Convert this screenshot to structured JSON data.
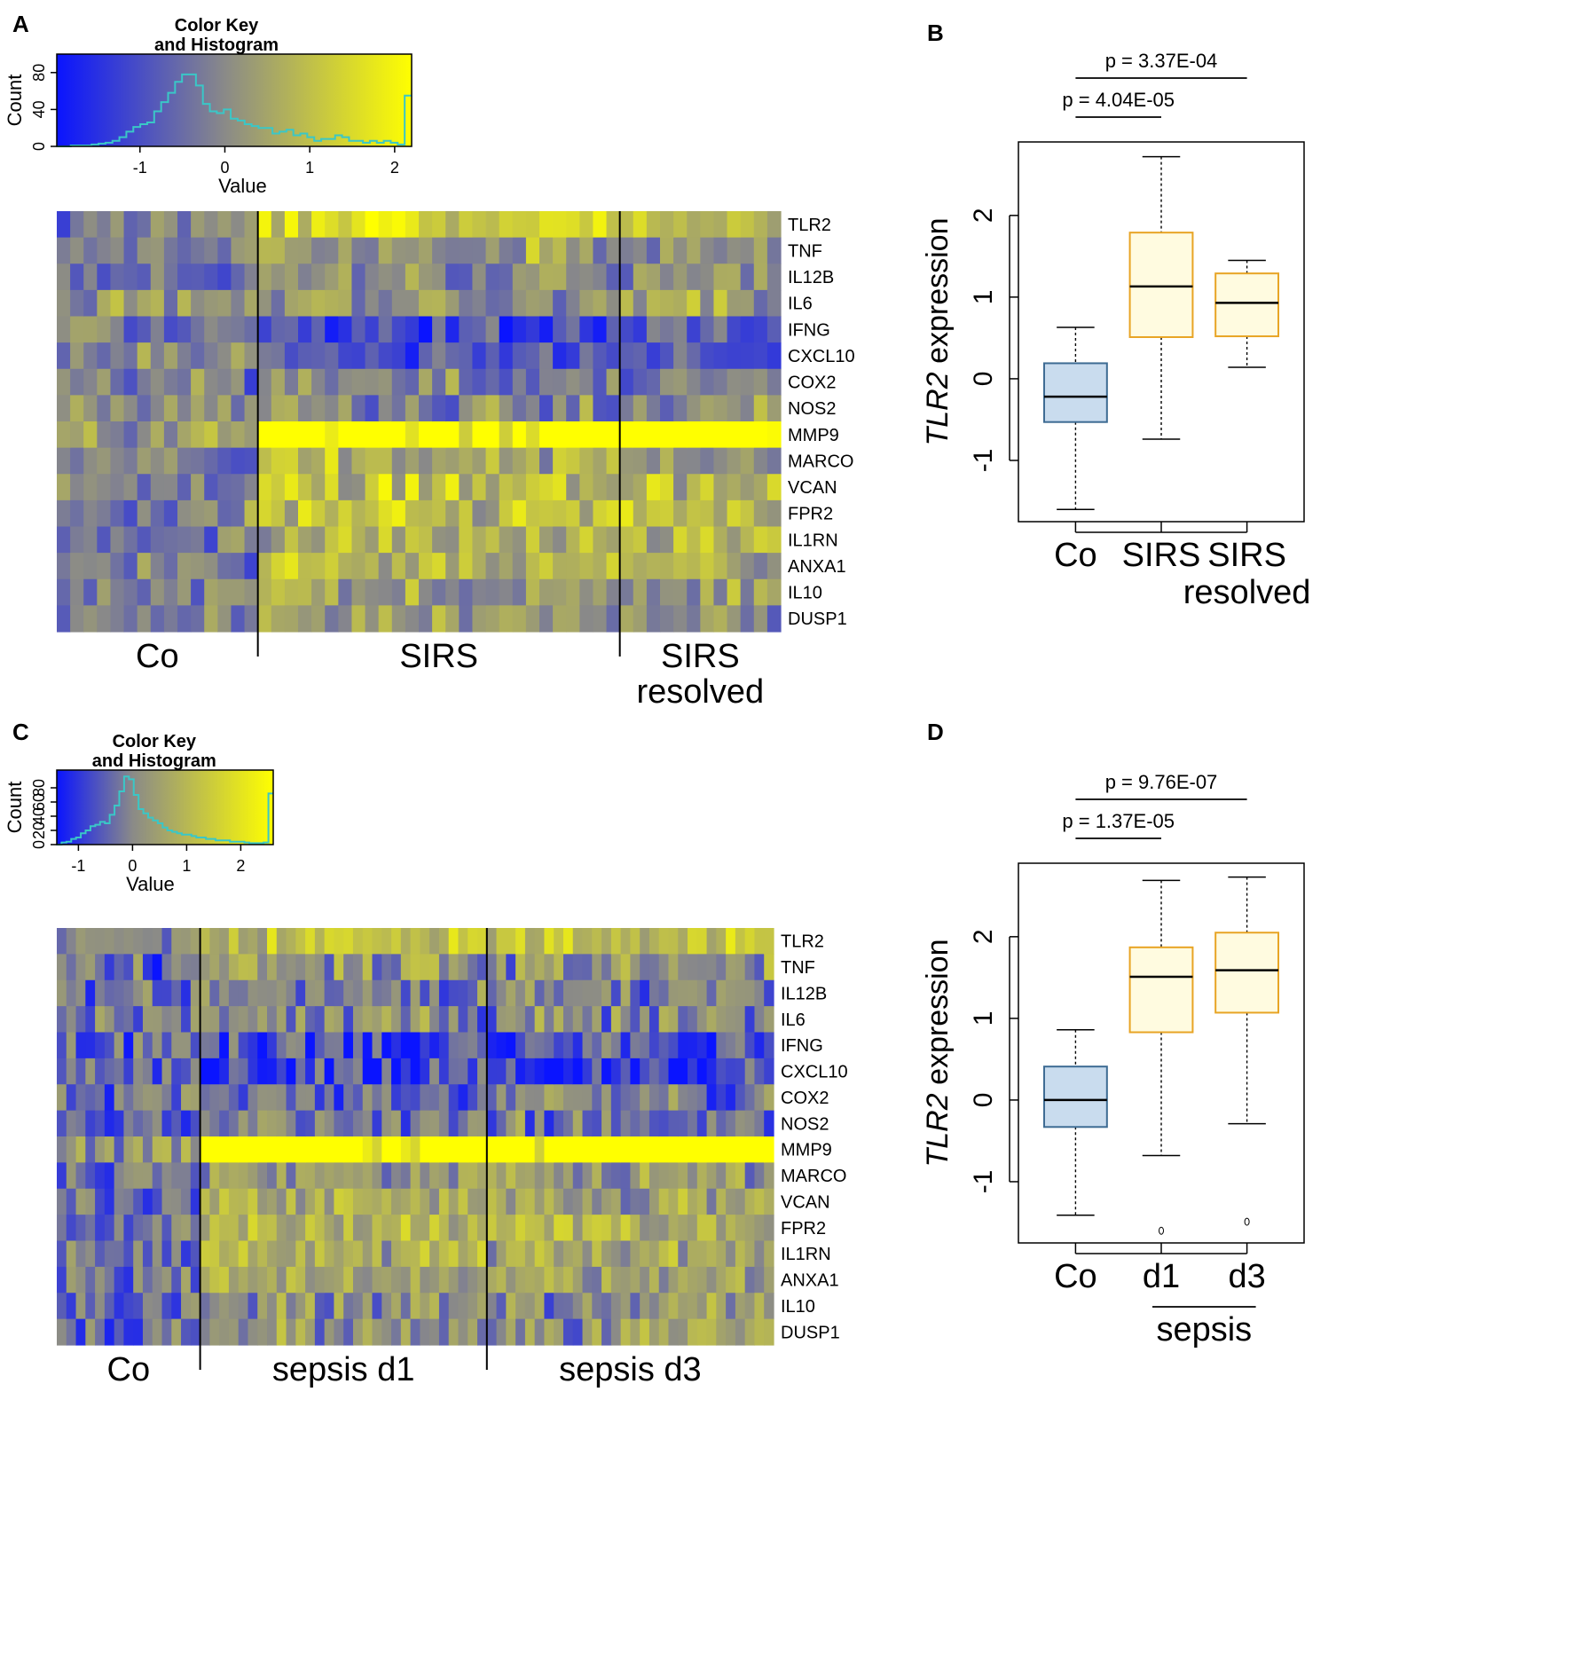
{
  "panels": {
    "A": {
      "label": "A",
      "color_key": {
        "title_line1": "Color Key",
        "title_line2": "and Histogram",
        "xlabel": "Value",
        "ylabel": "Count",
        "xticks": [
          "-1",
          "0",
          "1",
          "2"
        ],
        "yticks": [
          "0",
          "40",
          "80"
        ],
        "xlim": [
          -1.98,
          2.2
        ],
        "ylim": [
          0,
          100
        ]
      },
      "genes": [
        "TLR2",
        "TNF",
        "IL12B",
        "IL6",
        "IFNG",
        "CXCL10",
        "COX2",
        "NOS2",
        "MMP9",
        "MARCO",
        "VCAN",
        "FPR2",
        "IL1RN",
        "ANXA1",
        "IL10",
        "DUSP1"
      ],
      "groups": [
        {
          "label_line1": "Co",
          "label_line2": "",
          "n_cols": 15
        },
        {
          "label_line1": "SIRS",
          "label_line2": "",
          "n_cols": 27
        },
        {
          "label_line1": "SIRS",
          "label_line2": "resolved",
          "n_cols": 12
        }
      ]
    },
    "B": {
      "label": "B",
      "ylabel_italic": "TLR2",
      "ylabel_rest": " expression",
      "yticks": [
        "-1",
        "0",
        "1",
        "2"
      ],
      "ylim": [
        -1.75,
        2.9
      ],
      "xcats": [
        {
          "line1": "Co",
          "line2": ""
        },
        {
          "line1": "SIRS",
          "line2": ""
        },
        {
          "line1": "SIRS",
          "line2": "resolved"
        }
      ],
      "pvalues": [
        "p = 3.37E-04",
        "p = 4.04E-05"
      ],
      "boxes": [
        {
          "whisker_low": -1.6,
          "q1": -0.53,
          "median": -0.22,
          "q3": 0.19,
          "whisker_high": 0.63,
          "fill": "#c9dcee",
          "stroke": "#3d6b93"
        },
        {
          "whisker_low": -0.74,
          "q1": 0.51,
          "median": 1.13,
          "q3": 1.79,
          "whisker_high": 2.72,
          "fill": "#fffbe0",
          "stroke": "#e8a424"
        },
        {
          "whisker_low": 0.14,
          "q1": 0.52,
          "median": 0.93,
          "q3": 1.29,
          "whisker_high": 1.45,
          "fill": "#fffbe0",
          "stroke": "#e8a424"
        }
      ],
      "outliers": []
    },
    "C": {
      "label": "C",
      "color_key": {
        "title_line1": "Color Key",
        "title_line2": "and Histogram",
        "xlabel": "Value",
        "ylabel": "Count",
        "xticks": [
          "-1",
          "0",
          "1",
          "2"
        ],
        "yticks": [
          "0",
          "20",
          "40",
          "60",
          "80"
        ],
        "xlim": [
          -1.4,
          2.6
        ],
        "ylim": [
          0,
          105
        ]
      },
      "genes": [
        "TLR2",
        "TNF",
        "IL12B",
        "IL6",
        "IFNG",
        "CXCL10",
        "COX2",
        "NOS2",
        "MMP9",
        "MARCO",
        "VCAN",
        "FPR2",
        "IL1RN",
        "ANXA1",
        "IL10",
        "DUSP1"
      ],
      "groups": [
        {
          "label_line1": "Co",
          "label_line2": "",
          "n_cols": 15
        },
        {
          "label_line1": "sepsis d1",
          "label_line2": "",
          "n_cols": 30
        },
        {
          "label_line1": "sepsis d3",
          "label_line2": "",
          "n_cols": 30
        }
      ]
    },
    "D": {
      "label": "D",
      "ylabel_italic": "TLR2",
      "ylabel_rest": " expression",
      "yticks": [
        "-1",
        "0",
        "1",
        "2"
      ],
      "ylim": [
        -1.75,
        2.9
      ],
      "xcats": [
        {
          "line1": "Co",
          "line2": ""
        },
        {
          "line1": "d1",
          "line2": ""
        },
        {
          "line1": "d3",
          "line2": ""
        }
      ],
      "group_label": "sepsis",
      "pvalues": [
        "p = 9.76E-07",
        "p = 1.37E-05"
      ],
      "boxes": [
        {
          "whisker_low": -1.41,
          "q1": -0.33,
          "median": 0.0,
          "q3": 0.41,
          "whisker_high": 0.86,
          "fill": "#c9dcee",
          "stroke": "#3d6b93"
        },
        {
          "whisker_low": -0.68,
          "q1": 0.83,
          "median": 1.51,
          "q3": 1.87,
          "whisker_high": 2.69,
          "fill": "#fffbe0",
          "stroke": "#e8a424"
        },
        {
          "whisker_low": -0.29,
          "q1": 1.07,
          "median": 1.59,
          "q3": 2.05,
          "whisker_high": 2.73,
          "fill": "#fffbe0",
          "stroke": "#e8a424"
        }
      ],
      "outliers": [
        {
          "box": 1,
          "value": -1.6
        },
        {
          "box": 2,
          "value": -1.49
        }
      ]
    }
  },
  "colors": {
    "low": "#0a14ff",
    "mid": "#8a8a88",
    "high": "#ffff00",
    "histogram": "#3ac7c7"
  },
  "chart_data": [
    {
      "type": "heatmap",
      "panel": "A",
      "rows": [
        "TLR2",
        "TNF",
        "IL12B",
        "IL6",
        "IFNG",
        "CXCL10",
        "COX2",
        "NOS2",
        "MMP9",
        "MARCO",
        "VCAN",
        "FPR2",
        "IL1RN",
        "ANXA1",
        "IL10",
        "DUSP1"
      ],
      "column_groups": [
        "Co",
        "SIRS",
        "SIRS resolved"
      ],
      "color_scale": {
        "low": -1.98,
        "mid": 0,
        "high": 2.2
      },
      "row_means": {
        "Co": [
          -0.1,
          -0.4,
          -0.3,
          0.1,
          -0.3,
          -0.1,
          -0.2,
          -0.2,
          0.3,
          -0.3,
          -0.4,
          -0.1,
          -0.3,
          -0.3,
          -0.2,
          -0.1
        ],
        "SIRS": [
          1.4,
          0.3,
          0.0,
          0.2,
          -0.9,
          -1.0,
          -0.1,
          0.0,
          2.2,
          0.7,
          0.9,
          1.0,
          0.8,
          0.6,
          0.2,
          0.3
        ],
        "SIRS resolved": [
          0.9,
          0.2,
          -0.1,
          0.2,
          -0.7,
          -0.9,
          -0.1,
          -0.1,
          2.2,
          0.6,
          0.8,
          0.8,
          0.6,
          0.4,
          0.2,
          0.2
        ]
      }
    },
    {
      "type": "box",
      "panel": "B",
      "categories": [
        "Co",
        "SIRS",
        "SIRS resolved"
      ],
      "ylabel": "TLR2 expression",
      "ylim": [
        -1.75,
        2.9
      ],
      "stats": [
        {
          "min": -1.6,
          "q1": -0.53,
          "median": -0.22,
          "q3": 0.19,
          "max": 0.63
        },
        {
          "min": -0.74,
          "q1": 0.51,
          "median": 1.13,
          "q3": 1.79,
          "max": 2.72
        },
        {
          "min": 0.14,
          "q1": 0.52,
          "median": 0.93,
          "q3": 1.29,
          "max": 1.45
        }
      ],
      "annotations": [
        "p = 3.37E-04 (Co vs SIRS resolved)",
        "p = 4.04E-05 (Co vs SIRS)"
      ]
    },
    {
      "type": "heatmap",
      "panel": "C",
      "rows": [
        "TLR2",
        "TNF",
        "IL12B",
        "IL6",
        "IFNG",
        "CXCL10",
        "COX2",
        "NOS2",
        "MMP9",
        "MARCO",
        "VCAN",
        "FPR2",
        "IL1RN",
        "ANXA1",
        "IL10",
        "DUSP1"
      ],
      "column_groups": [
        "Co",
        "sepsis d1",
        "sepsis d3"
      ],
      "color_scale": {
        "low": -1.4,
        "mid": 0,
        "high": 2.6
      },
      "row_means": {
        "Co": [
          -0.2,
          -0.3,
          -0.3,
          -0.1,
          -0.4,
          -0.3,
          -0.2,
          -0.2,
          0.3,
          -0.3,
          -0.4,
          -0.3,
          -0.3,
          -0.4,
          -0.3,
          -0.2
        ],
        "sepsis d1": [
          1.2,
          0.2,
          -0.1,
          0.1,
          -0.7,
          -0.9,
          -0.4,
          -0.1,
          2.5,
          0.4,
          0.6,
          1.0,
          0.7,
          0.6,
          0.2,
          0.3
        ],
        "sepsis d3": [
          1.2,
          0.2,
          -0.1,
          0.1,
          -0.7,
          -0.9,
          -0.3,
          -0.1,
          2.5,
          0.4,
          0.6,
          0.9,
          0.6,
          0.5,
          0.2,
          0.3
        ]
      }
    },
    {
      "type": "box",
      "panel": "D",
      "categories": [
        "Co",
        "d1",
        "d3"
      ],
      "ylabel": "TLR2 expression",
      "ylim": [
        -1.75,
        2.9
      ],
      "stats": [
        {
          "min": -1.41,
          "q1": -0.33,
          "median": 0.0,
          "q3": 0.41,
          "max": 0.86
        },
        {
          "min": -0.68,
          "q1": 0.83,
          "median": 1.51,
          "q3": 1.87,
          "max": 2.69,
          "outliers": [
            -1.6
          ]
        },
        {
          "min": -0.29,
          "q1": 1.07,
          "median": 1.59,
          "q3": 2.05,
          "max": 2.73,
          "outliers": [
            -1.49
          ]
        }
      ],
      "annotations": [
        "p = 9.76E-07 (Co vs d3)",
        "p = 1.37E-05 (Co vs d1)"
      ]
    }
  ]
}
